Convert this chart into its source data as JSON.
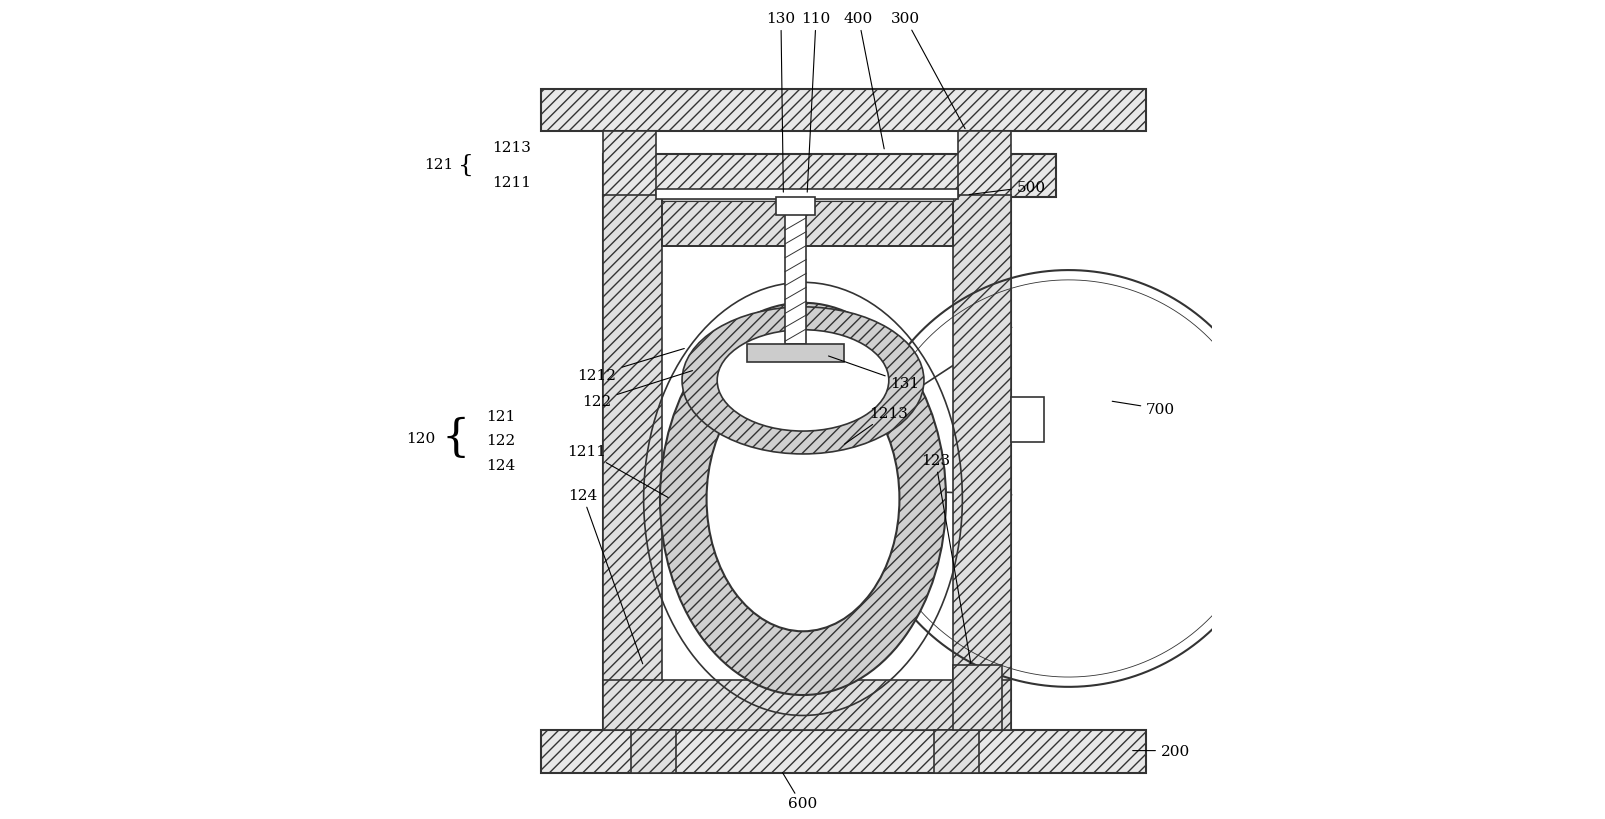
{
  "bg_color": "#ffffff",
  "line_color": "#333333",
  "fig_width": 16.06,
  "fig_height": 8.2
}
